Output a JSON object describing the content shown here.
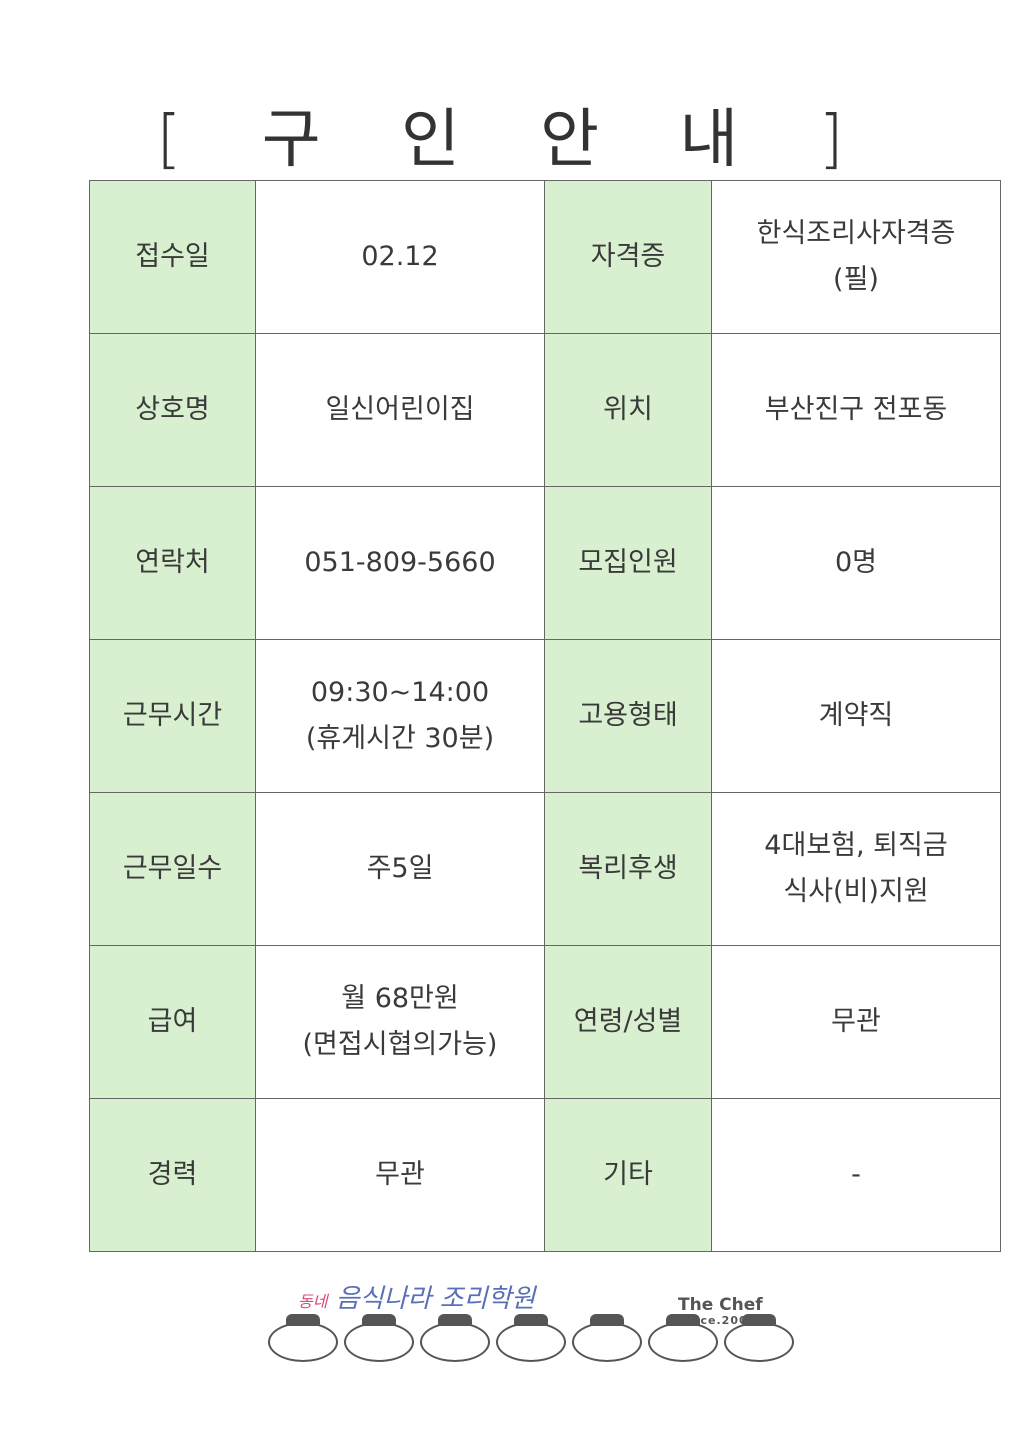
{
  "title": "[ 구 인 안 내 ]",
  "rows": [
    {
      "label1": "접수일",
      "value1": "02.12",
      "label2": "자격증",
      "value2": "한식조리사자격증\n(필)"
    },
    {
      "label1": "상호명",
      "value1": "일신어린이집",
      "label2": "위치",
      "value2": "부산진구  전포동"
    },
    {
      "label1": "연락처",
      "value1": "051-809-5660",
      "label2": "모집인원",
      "value2": "0명"
    },
    {
      "label1": "근무시간",
      "value1": "09:30~14:00\n(휴게시간  30분)",
      "label2": "고용형태",
      "value2": "계약직"
    },
    {
      "label1": "근무일수",
      "value1": "주5일",
      "label2": "복리후생",
      "value2": "4대보험, 퇴직금\n식사(비)지원"
    },
    {
      "label1": "급여",
      "value1": "월  68만원\n(면접시협의가능)",
      "label2": "연령/성별",
      "value2": "무관"
    },
    {
      "label1": "경력",
      "value1": "무관",
      "label2": "기타",
      "value2": "-"
    }
  ],
  "logo": {
    "prefix": "동네",
    "name": "음식나라 조리학원",
    "brand": "The Chef",
    "since": "Since.2000"
  },
  "colors": {
    "header_bg": "#d8f0cf",
    "border": "#666666"
  }
}
